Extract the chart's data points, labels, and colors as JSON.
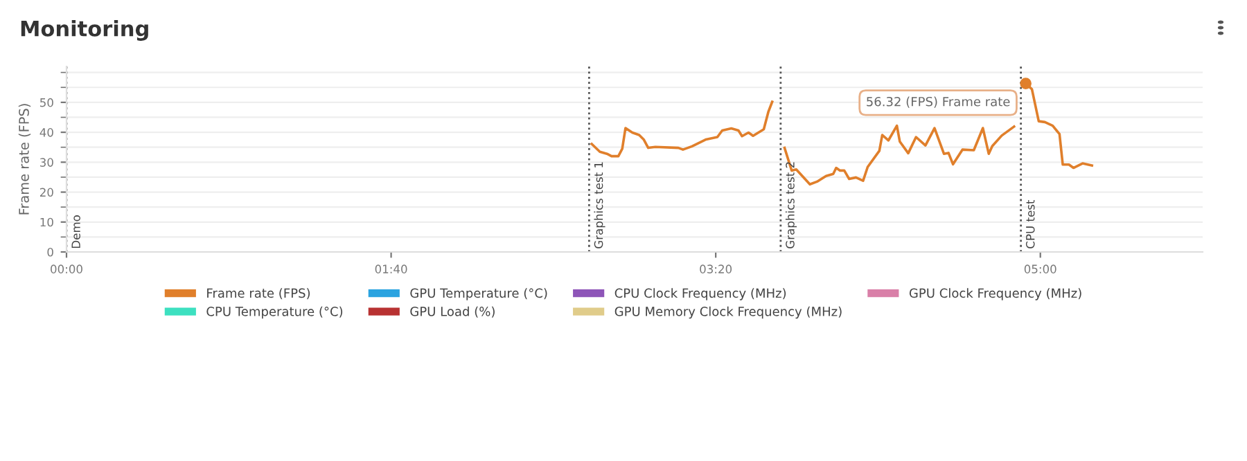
{
  "chart_data": {
    "type": "line",
    "title": "Monitoring",
    "ylabel": "Frame rate (FPS)",
    "xlim": [
      0,
      350
    ],
    "ylim": [
      0,
      62
    ],
    "xticks": [
      {
        "value": 0,
        "label": "00:00"
      },
      {
        "value": 100,
        "label": "01:40"
      },
      {
        "value": 200,
        "label": "03:20"
      },
      {
        "value": 300,
        "label": "05:00"
      }
    ],
    "yticks": [
      0,
      {
        "value": 5,
        "label": null
      },
      10,
      {
        "value": 15,
        "label": null
      },
      20,
      {
        "value": 25,
        "label": null
      },
      30,
      {
        "value": 35,
        "label": null
      },
      40,
      {
        "value": 45,
        "label": null
      },
      50,
      {
        "value": 55,
        "label": null
      },
      {
        "value": 60,
        "label": null
      }
    ],
    "grid": "y",
    "legend": "bottom",
    "marker": "none",
    "line_style": "solid",
    "series": [
      {
        "name": "Frame rate (FPS)",
        "color": "#e07f2b",
        "x": [
          161.8,
          164.3,
          166.5,
          167.9,
          170.0,
          171.2,
          172.2,
          174.3,
          176.4,
          177.8,
          179.2,
          181.4,
          188.5,
          189.9,
          192.7,
          197.0,
          200.5,
          202.0,
          204.8,
          207.0,
          208.1,
          210.1,
          211.5,
          214.8,
          216.2,
          217.4,
          219.0,
          221.2,
          223.4,
          224.8,
          226.9,
          229.0,
          231.2,
          234.0,
          236.2,
          237.1,
          238.3,
          239.6,
          241.1,
          243.2,
          245.4,
          246.8,
          250.4,
          251.3,
          253.2,
          255.8,
          256.7,
          259.3,
          261.7,
          264.6,
          267.4,
          270.3,
          271.7,
          273.1,
          276.0,
          279.5,
          282.3,
          284.1,
          285.2,
          288.1,
          291.9,
          293.5,
          295.5,
          297.4,
          299.5,
          301.4,
          303.8,
          305.9,
          306.9,
          308.8,
          310.2,
          313.0,
          315.9
        ],
        "values": [
          36.1,
          33.5,
          32.8,
          32.0,
          32.0,
          34.5,
          41.4,
          39.9,
          39.1,
          37.6,
          34.8,
          35.1,
          34.8,
          34.2,
          35.3,
          37.6,
          38.4,
          40.6,
          41.3,
          40.6,
          38.7,
          39.9,
          38.8,
          41.0,
          46.8,
          50.2,
          null,
          34.8,
          27.2,
          27.6,
          25.1,
          22.6,
          23.5,
          25.4,
          26.1,
          28.1,
          27.2,
          27.2,
          24.4,
          24.9,
          23.8,
          28.4,
          33.8,
          39.1,
          37.3,
          42.2,
          36.9,
          33.0,
          38.4,
          35.6,
          41.4,
          32.8,
          33.1,
          29.3,
          34.2,
          34.0,
          41.4,
          32.8,
          35.4,
          38.9,
          41.9,
          null,
          56.32,
          54.4,
          43.7,
          43.4,
          42.2,
          39.4,
          29.2,
          29.2,
          28.1,
          29.6,
          28.9
        ]
      },
      {
        "name": "CPU Temperature (°C)",
        "color": "#3de0c0"
      },
      {
        "name": "GPU Temperature (°C)",
        "color": "#2aa3e0"
      },
      {
        "name": "GPU Load (%)",
        "color": "#b83232"
      },
      {
        "name": "CPU Clock Frequency (MHz)",
        "color": "#8e55b8"
      },
      {
        "name": "GPU Memory Clock Frequency (MHz)",
        "color": "#e0cc8a"
      },
      {
        "name": "GPU Clock Frequency (MHz)",
        "color": "#d97fa8"
      }
    ],
    "ref_lines": [
      {
        "axis": "x",
        "value": 0,
        "label": "Demo",
        "color": "#555555",
        "line_style": "dotted"
      },
      {
        "axis": "x",
        "value": 161,
        "label": "Graphics test 1",
        "color": "#555555",
        "line_style": "dotted"
      },
      {
        "axis": "x",
        "value": 220,
        "label": "Graphics test 2",
        "color": "#555555",
        "line_style": "dotted"
      },
      {
        "axis": "x",
        "value": 294,
        "label": "CPU test",
        "color": "#555555",
        "line_style": "dotted"
      }
    ],
    "annotations": [
      {
        "text": "56.32 (FPS) Frame rate",
        "x": 295.5,
        "y": 56.32
      }
    ]
  }
}
